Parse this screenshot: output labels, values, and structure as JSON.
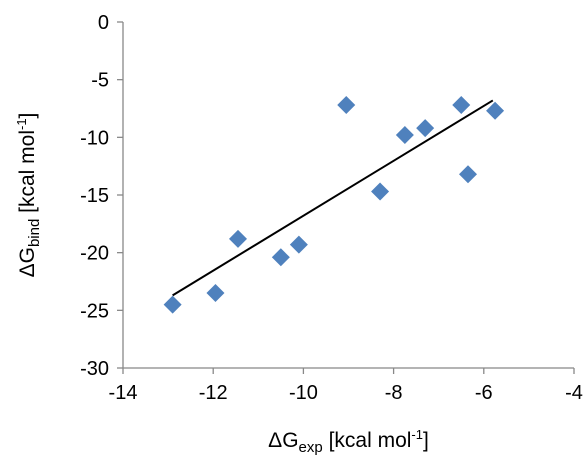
{
  "chart_data": {
    "type": "scatter",
    "xlabel": {
      "pre": "ΔG",
      "sub": "exp",
      "unit_pre": " [kcal mol",
      "sup": "-1",
      "post": "]"
    },
    "ylabel": {
      "pre": "ΔG",
      "sub": "bind",
      "unit_pre": " [kcal mol",
      "sup": "-1",
      "post": "]"
    },
    "xlim": [
      -14,
      -4
    ],
    "ylim": [
      -30,
      0
    ],
    "xticks": [
      -14,
      -12,
      -10,
      -8,
      -6,
      -4
    ],
    "yticks": [
      0,
      -5,
      -10,
      -15,
      -20,
      -25,
      -30
    ],
    "grid": false,
    "legend": "none",
    "marker_color": "#4f81bd",
    "marker_shape": "diamond",
    "series": [
      {
        "points": [
          {
            "x": -12.9,
            "y": -24.5
          },
          {
            "x": -11.95,
            "y": -23.5
          },
          {
            "x": -11.45,
            "y": -18.8
          },
          {
            "x": -10.5,
            "y": -20.4
          },
          {
            "x": -10.1,
            "y": -19.3
          },
          {
            "x": -9.05,
            "y": -7.2
          },
          {
            "x": -8.3,
            "y": -14.7
          },
          {
            "x": -7.75,
            "y": -9.8
          },
          {
            "x": -7.3,
            "y": -9.2
          },
          {
            "x": -6.5,
            "y": -7.2
          },
          {
            "x": -6.35,
            "y": -13.2
          },
          {
            "x": -5.75,
            "y": -7.7
          }
        ]
      }
    ],
    "trendline": {
      "type": "linear",
      "x": [
        -12.9,
        -5.8
      ],
      "y": [
        -23.7,
        -6.8
      ],
      "color": "#000000"
    }
  }
}
